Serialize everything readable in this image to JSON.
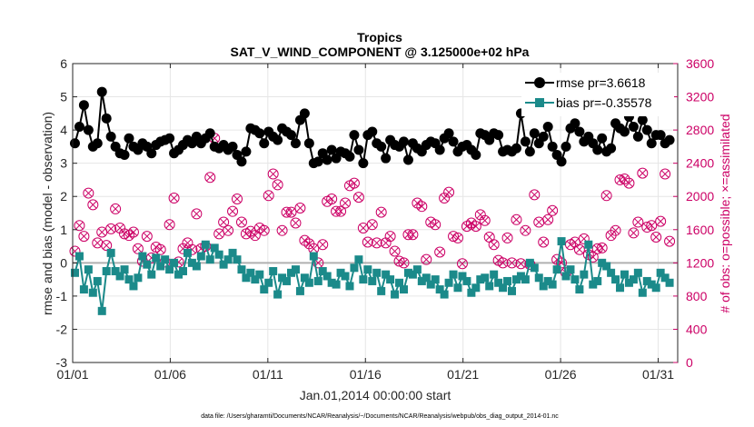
{
  "chart_data": {
    "type": "line",
    "title": "Tropics",
    "subtitle": "SAT_V_WIND_COMPONENT @ 3.125000e+02 hPa",
    "xlabel": "Jan.01,2014 00:00:00 start",
    "ylabel": "rmse and bias (model - observation)",
    "ylabel_right": "# of obs: o=possible; ×=assimilated",
    "footnote": "data file: /Users/gharamti/Documents/NCAR/Reanalysis/~/Documents/NCAR/Reanalysis/webpub/obs_diag_output_2014-01.nc",
    "xlim": [
      1,
      32
    ],
    "ylim": [
      -3,
      6
    ],
    "ylim_right": [
      0,
      3600
    ],
    "x_ticks": [
      1,
      6,
      11,
      16,
      21,
      26,
      31
    ],
    "x_tick_labels": [
      "01/01",
      "01/06",
      "01/11",
      "01/16",
      "01/21",
      "01/26",
      "01/31"
    ],
    "y_ticks": [
      -3,
      -2,
      -1,
      0,
      1,
      2,
      3,
      4,
      5,
      6
    ],
    "y_tick_labels": [
      "-3",
      "-2",
      "-1",
      "0",
      "1",
      "2",
      "3",
      "4",
      "5",
      "6"
    ],
    "y_ticks_right": [
      0,
      400,
      800,
      1200,
      1600,
      2000,
      2400,
      2800,
      3200,
      3600
    ],
    "y_tick_labels_right": [
      "0",
      "400",
      "800",
      "1200",
      "1600",
      "2000",
      "2400",
      "2800",
      "3200",
      "3600"
    ],
    "grid": true,
    "legend_position": "top-right",
    "series": [
      {
        "name": "rmse pr=3.6618",
        "color": "#000000",
        "marker": "circle",
        "values": [
          3.6,
          4.1,
          4.75,
          4.0,
          3.5,
          3.6,
          5.15,
          4.35,
          3.8,
          3.5,
          3.3,
          3.25,
          3.75,
          3.5,
          3.4,
          3.6,
          3.5,
          3.3,
          3.55,
          3.65,
          3.7,
          3.75,
          3.3,
          3.4,
          3.55,
          3.7,
          3.6,
          3.8,
          3.6,
          3.75,
          3.9,
          3.5,
          3.45,
          3.55,
          3.4,
          3.5,
          3.25,
          3.05,
          3.35,
          4.05,
          4.0,
          3.9,
          3.6,
          3.95,
          3.8,
          3.7,
          4.05,
          3.95,
          3.85,
          3.6,
          4.3,
          4.5,
          3.6,
          3.0,
          3.05,
          3.3,
          3.1,
          3.4,
          3.15,
          3.35,
          3.3,
          3.2,
          3.85,
          3.4,
          3.0,
          3.85,
          3.95,
          3.6,
          3.5,
          3.15,
          3.7,
          3.55,
          3.5,
          3.65,
          3.1,
          3.6,
          3.45,
          3.35,
          3.55,
          3.65,
          3.6,
          3.4,
          3.75,
          3.9,
          3.65,
          3.35,
          3.5,
          3.55,
          3.4,
          3.25,
          3.9,
          3.85,
          3.7,
          3.9,
          3.85,
          3.35,
          3.4,
          3.35,
          3.45,
          4.5,
          3.65,
          3.35,
          3.9,
          3.6,
          3.8,
          4.1,
          3.5,
          3.25,
          3.05,
          3.5,
          4.05,
          4.2,
          3.95,
          3.65,
          3.8,
          3.6,
          3.4,
          3.75,
          3.35,
          3.45,
          4.2,
          4.05,
          3.95,
          4.4,
          4.1,
          3.8,
          4.3,
          4.0,
          3.6,
          3.85,
          3.85,
          3.6,
          3.7
        ]
      },
      {
        "name": "bias pr=-0.35578",
        "color": "#1b8a8a",
        "marker": "square",
        "values": [
          -0.3,
          0.2,
          -0.8,
          -0.2,
          -0.9,
          -0.55,
          -1.45,
          -0.25,
          0.3,
          -0.25,
          -0.4,
          -0.2,
          -0.5,
          -0.7,
          -0.45,
          0.2,
          -0.05,
          -0.35,
          0.15,
          -0.1,
          0.1,
          -0.2,
          0.0,
          -0.35,
          -0.25,
          0.3,
          0.0,
          -0.1,
          0.2,
          0.55,
          0.1,
          0.45,
          0.25,
          -0.05,
          0.1,
          0.3,
          0.1,
          -0.2,
          -0.45,
          -0.3,
          -0.5,
          -0.35,
          -0.8,
          -0.6,
          -0.25,
          -0.95,
          -0.45,
          -0.55,
          -0.3,
          -0.2,
          -0.85,
          -0.45,
          -0.6,
          0.2,
          -0.55,
          -0.25,
          -0.4,
          -0.6,
          -0.65,
          -0.3,
          -0.4,
          -0.7,
          -0.15,
          0.1,
          -0.5,
          -0.2,
          -0.55,
          -0.3,
          -0.85,
          -0.35,
          -0.5,
          -0.95,
          -0.6,
          -0.8,
          -0.3,
          -0.35,
          -0.2,
          -0.55,
          -0.45,
          -0.65,
          -0.5,
          -0.8,
          -0.95,
          -0.6,
          -0.35,
          -0.75,
          -0.4,
          -0.55,
          -0.9,
          -0.75,
          -0.5,
          -0.45,
          -0.7,
          -0.35,
          -0.6,
          -0.75,
          -0.55,
          -0.85,
          -0.5,
          -0.4,
          -0.5,
          0.0,
          -0.15,
          -0.45,
          -0.7,
          -0.55,
          -0.65,
          -0.2,
          0.65,
          -0.4,
          -0.2,
          -0.5,
          -0.8,
          -0.35,
          0.55,
          -0.65,
          -0.55,
          0.0,
          -0.1,
          -0.3,
          -0.5,
          -0.75,
          -0.35,
          -0.6,
          -0.5,
          -0.3,
          -0.9,
          -0.55,
          -0.65,
          -0.75,
          -0.3,
          -0.45,
          -0.6
        ]
      },
      {
        "name": "# of obs possible",
        "color": "#cc0066",
        "marker": "circle-open",
        "axis": "right",
        "values": [
          1340,
          1650,
          1520,
          2040,
          1900,
          1440,
          1570,
          1410,
          1610,
          1850,
          1620,
          1550,
          1530,
          1570,
          1370,
          1220,
          1520,
          1260,
          1390,
          1360,
          1210,
          1660,
          1980,
          1210,
          1370,
          1440,
          1360,
          1790,
          1370,
          1400,
          2230,
          2700,
          1550,
          1690,
          1590,
          1820,
          1970,
          1690,
          1550,
          1580,
          1530,
          1620,
          1590,
          2010,
          2270,
          2140,
          1590,
          1810,
          1810,
          1680,
          1860,
          1470,
          1430,
          1370,
          1200,
          1420,
          1940,
          1970,
          1820,
          1820,
          1920,
          2130,
          2160,
          1990,
          1620,
          1450,
          1660,
          1440,
          1810,
          1440,
          1520,
          1340,
          1220,
          1200,
          1540,
          1540,
          1920,
          1880,
          1240,
          1690,
          1660,
          1330,
          1980,
          2050,
          1520,
          1500,
          1190,
          1640,
          1680,
          1640,
          1780,
          1710,
          1510,
          1420,
          1230,
          1200,
          1500,
          1200,
          1720,
          1190,
          1590,
          1180,
          2020,
          1690,
          1450,
          1720,
          1830,
          1240,
          1200,
          1080,
          1420,
          1450,
          1360,
          1490,
          1300,
          1270,
          1370,
          1380,
          2010,
          1530,
          1590,
          2200,
          2210,
          2160,
          1560,
          1690,
          2280,
          1630,
          1650,
          1510,
          1700,
          2270,
          1460
        ]
      },
      {
        "name": "# of obs assimilated",
        "color": "#cc0066",
        "marker": "x",
        "axis": "right",
        "values": [
          1340,
          1650,
          1520,
          2040,
          1900,
          1440,
          1570,
          1410,
          1610,
          1850,
          1620,
          1550,
          1530,
          1570,
          1370,
          1220,
          1520,
          1260,
          1390,
          1360,
          1210,
          1660,
          1980,
          1210,
          1370,
          1440,
          1360,
          1790,
          1370,
          1400,
          2230,
          2700,
          1550,
          1690,
          1590,
          1820,
          1970,
          1690,
          1550,
          1580,
          1530,
          1620,
          1590,
          2010,
          2270,
          2140,
          1590,
          1810,
          1810,
          1680,
          1860,
          1470,
          1430,
          1370,
          1200,
          1420,
          1940,
          1970,
          1820,
          1820,
          1920,
          2130,
          2160,
          1990,
          1620,
          1450,
          1660,
          1440,
          1810,
          1440,
          1520,
          1340,
          1220,
          1200,
          1540,
          1540,
          1920,
          1880,
          1240,
          1690,
          1660,
          1330,
          1980,
          2050,
          1520,
          1500,
          1190,
          1640,
          1680,
          1640,
          1780,
          1710,
          1510,
          1420,
          1230,
          1200,
          1500,
          1200,
          1720,
          1190,
          1590,
          1180,
          2020,
          1690,
          1450,
          1720,
          1830,
          1240,
          1200,
          1080,
          1420,
          1450,
          1360,
          1490,
          1300,
          1270,
          1370,
          1380,
          2010,
          1530,
          1590,
          2200,
          2210,
          2160,
          1560,
          1690,
          2280,
          1630,
          1650,
          1510,
          1700,
          2270,
          1460
        ]
      }
    ]
  }
}
